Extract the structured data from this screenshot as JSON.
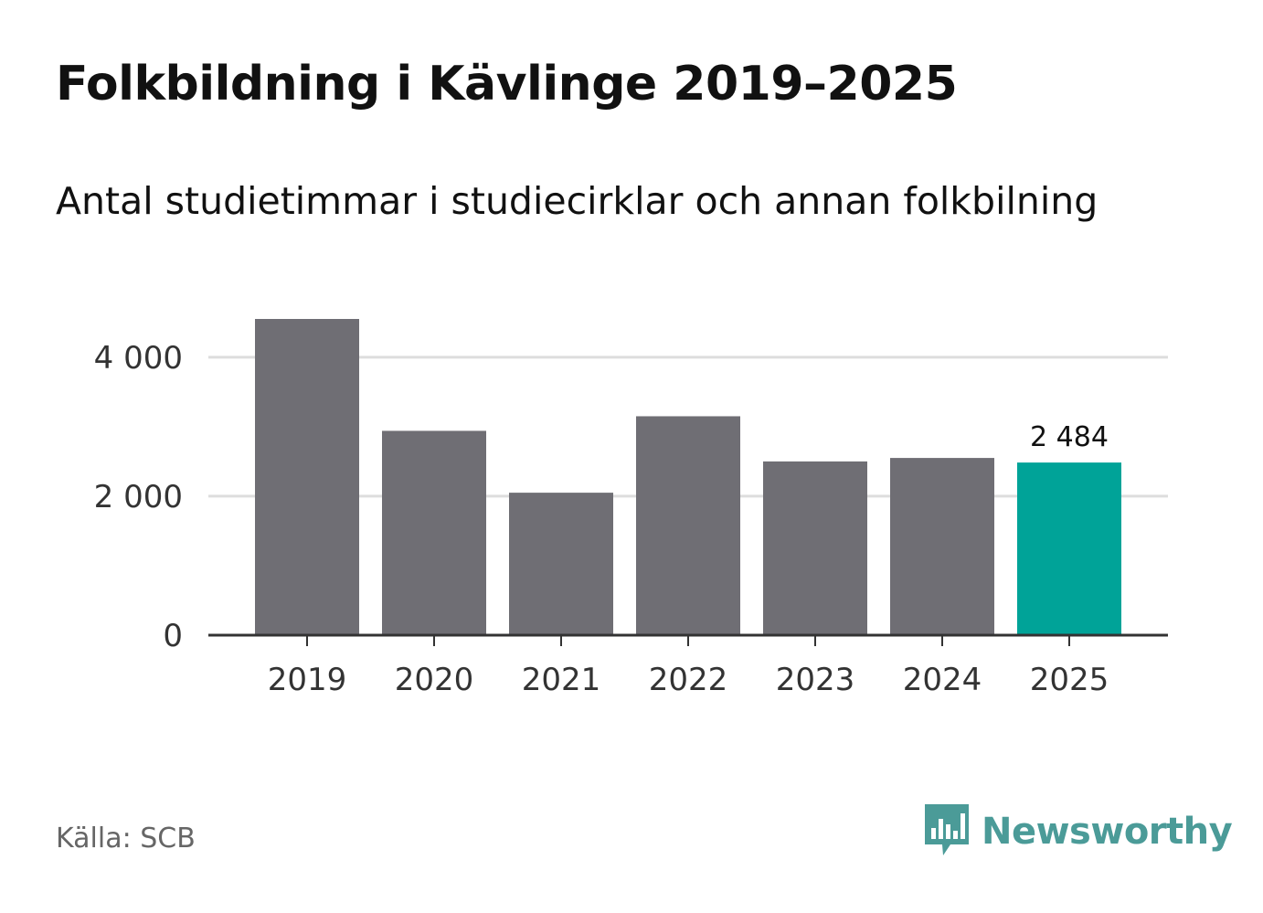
{
  "header": {
    "title": "Folkbildning i Kävlinge 2019–2025",
    "subtitle": "Antal studietimmar i studiecirklar och annan folkbilning"
  },
  "footer": {
    "source": "Källa: SCB",
    "brand": "Newsworthy",
    "brand_icon": "newsworthy-logo-icon"
  },
  "colors": {
    "bar": "#6f6e74",
    "highlight": "#00a398",
    "grid": "#dddddd",
    "axis": "#333333",
    "brand": "#4b9b98"
  },
  "chart_data": {
    "type": "bar",
    "title": "Folkbildning i Kävlinge 2019–2025",
    "subtitle": "Antal studietimmar i studiecirklar och annan folkbilning",
    "categories": [
      "2019",
      "2020",
      "2021",
      "2022",
      "2023",
      "2024",
      "2025"
    ],
    "values": [
      4550,
      2940,
      2050,
      3150,
      2500,
      2550,
      2484
    ],
    "highlight_index": 6,
    "data_labels": [
      {
        "index": 6,
        "text": "2 484"
      }
    ],
    "xlabel": "",
    "ylabel": "",
    "ylim": [
      0,
      4550
    ],
    "yticks": [
      {
        "value": 0,
        "label": "0"
      },
      {
        "value": 2000,
        "label": "2 000"
      },
      {
        "value": 4000,
        "label": "4 000"
      }
    ],
    "grid": true,
    "legend": "none"
  }
}
